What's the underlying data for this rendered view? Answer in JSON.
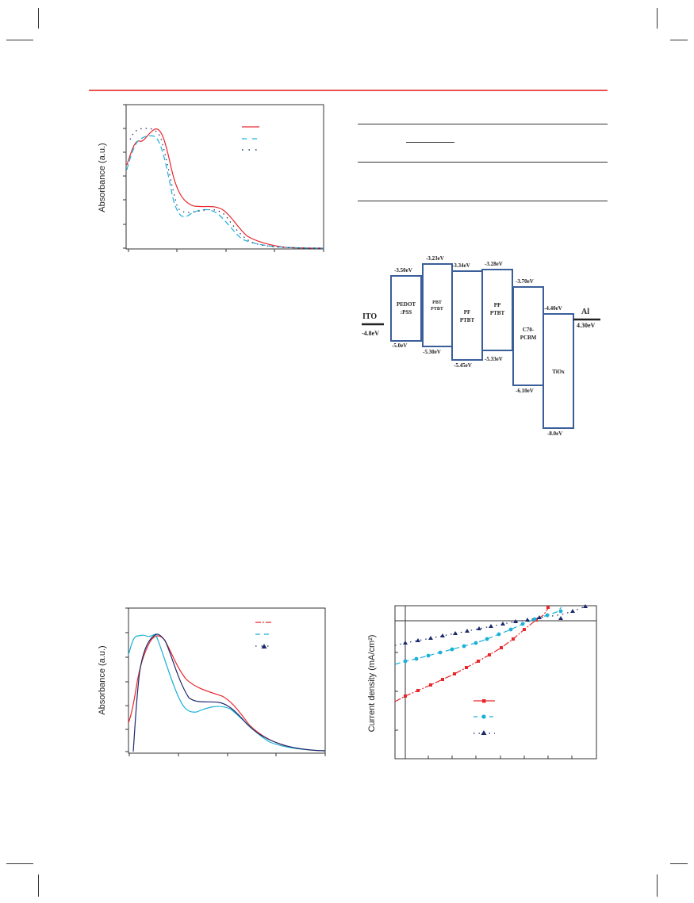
{
  "header_rule_color": "#e8534f",
  "fig_abs1": {
    "ylabel": "Absorbance (a.u.)",
    "legend_colors": [
      "#e8262c",
      "#1ab0d8",
      "#1c2a6b"
    ]
  },
  "table": {
    "rule_color": "#333333"
  },
  "energy_diagram": {
    "left_electrode": {
      "name": "ITO",
      "level": "-4.8eV"
    },
    "right_electrode": {
      "name": "Al",
      "level": "4.30eV"
    },
    "layers": [
      {
        "name_line1": "PEDOT",
        "name_line2": ":PSS",
        "lumo": "-3.50eV",
        "homo": "-5.0eV"
      },
      {
        "name_line1": "PBT",
        "name_line2": "PTBT",
        "lumo": "-3.23eV",
        "homo": "-5.30eV"
      },
      {
        "name_line1": "PF",
        "name_line2": "PTBT",
        "lumo": "-3.34eV",
        "homo": "-5.45eV"
      },
      {
        "name_line1": "PP",
        "name_line2": "PTBT",
        "lumo": "-3.28eV",
        "homo": "-5.33eV"
      },
      {
        "name_line1": "C70-",
        "name_line2": "PCBM",
        "lumo": "-3.70eV",
        "homo": "-6.10eV"
      },
      {
        "name_line1": "TiOx",
        "name_line2": "",
        "lumo": "-4.40eV",
        "homo": "-8.0eV"
      }
    ],
    "box_color": "#3a5e9a"
  },
  "fig_abs2": {
    "ylabel": "Absorbance (a.u.)",
    "legend_colors": [
      "#e8262c",
      "#1ab0d8",
      "#1c2a6b"
    ]
  },
  "fig_jv": {
    "ylabel": "Current density (mA/cm²)",
    "legend_colors": [
      "#e8262c",
      "#1ab0d8",
      "#1c2a6b"
    ]
  }
}
